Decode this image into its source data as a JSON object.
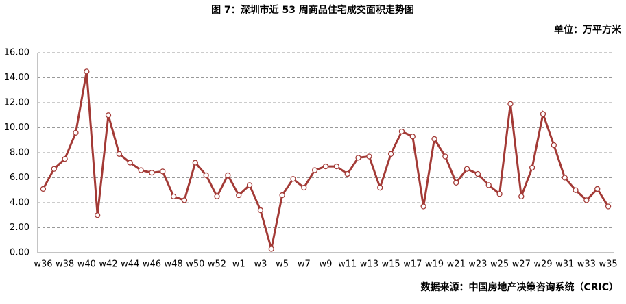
{
  "chart_data": {
    "type": "line",
    "title": "图 7：深圳市近 53 周商品住宅成交面积走势图",
    "unit": "单位：万平方米",
    "source": "数据来源：中国房地产决策咨询系统（CRIC）",
    "categories": [
      "w36",
      null,
      "w38",
      null,
      "w40",
      null,
      "w42",
      null,
      "w44",
      null,
      "w46",
      null,
      "w48",
      null,
      "w50",
      null,
      "w52",
      null,
      "w1",
      null,
      "w3",
      null,
      "w5",
      null,
      "w7",
      null,
      "w9",
      null,
      "w11",
      null,
      "w13",
      null,
      "w15",
      null,
      "w17",
      null,
      "w19",
      null,
      "w21",
      null,
      "w23",
      null,
      "w25",
      null,
      "w27",
      null,
      "w29",
      null,
      "w31",
      null,
      "w33",
      null,
      "w35"
    ],
    "series": [
      {
        "color": "#a33a36",
        "values": [
          5.1,
          6.7,
          7.5,
          9.6,
          14.5,
          3.0,
          11.0,
          7.9,
          7.2,
          6.6,
          6.4,
          6.5,
          4.5,
          4.2,
          7.2,
          6.2,
          4.5,
          6.2,
          4.6,
          5.4,
          3.4,
          0.3,
          4.6,
          5.9,
          5.2,
          6.6,
          6.9,
          6.9,
          6.3,
          7.6,
          7.7,
          5.2,
          7.9,
          9.7,
          9.3,
          3.7,
          9.1,
          7.7,
          5.6,
          6.7,
          6.3,
          5.4,
          4.7,
          11.9,
          4.5,
          6.8,
          11.1,
          8.6,
          6.0,
          5.0,
          4.2,
          5.1,
          3.7
        ]
      }
    ],
    "ylim": [
      0,
      16
    ],
    "yticks": [
      {
        "value": 0,
        "label": "0.00"
      },
      {
        "value": 2,
        "label": "2.00"
      },
      {
        "value": 4,
        "label": "4.00"
      },
      {
        "value": 6,
        "label": "6.00"
      },
      {
        "value": 8,
        "label": "8.00"
      },
      {
        "value": 10,
        "label": "10.00"
      },
      {
        "value": 12,
        "label": "12.00"
      },
      {
        "value": 14,
        "label": "14.00"
      },
      {
        "value": 16,
        "label": "16.00"
      }
    ],
    "grid": true
  }
}
